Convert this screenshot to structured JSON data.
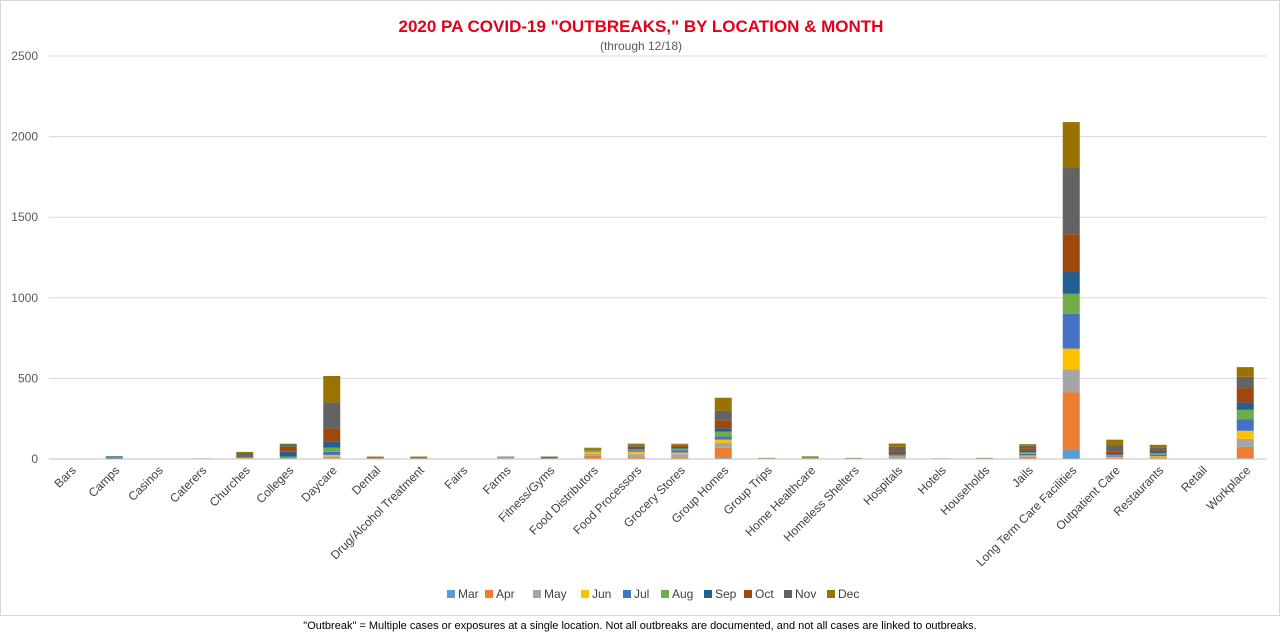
{
  "footnote": "\"Outbreak\" = Multiple cases or exposures at a single location. Not all outbreaks are documented, and not all cases are linked to outbreaks.",
  "chart_data": {
    "type": "bar",
    "stacked": true,
    "title": "2020 PA COVID-19 \"OUTBREAKS,\" BY LOCATION & MONTH",
    "subtitle": "(through 12/18)",
    "title_color": "#e2001a",
    "xlabel": "",
    "ylabel": "",
    "ylim": [
      0,
      2500
    ],
    "yticks": [
      0,
      500,
      1000,
      1500,
      2000,
      2500
    ],
    "grid": true,
    "legend_position": "bottom",
    "categories": [
      "Bars",
      "Camps",
      "Casinos",
      "Caterers",
      "Churches",
      "Colleges",
      "Daycare",
      "Dental",
      "Drug/Alcohol Treatment",
      "Fairs",
      "Farms",
      "Fitness/Gyms",
      "Food Distributors",
      "Food Processors",
      "Grocery Stores",
      "Group Homes",
      "Group Trips",
      "Home Healthcare",
      "Homeless Shelters",
      "Hospitals",
      "Hotels",
      "Households",
      "Jails",
      "Long Term Care Facilities",
      "Outpatient Care",
      "Restaurants",
      "Retail",
      "Workplace"
    ],
    "series": [
      {
        "name": "Mar",
        "color": "#5b9bd5",
        "values": [
          0,
          0,
          0,
          0,
          0,
          0,
          5,
          0,
          0,
          0,
          0,
          0,
          0,
          0,
          0,
          10,
          0,
          0,
          0,
          5,
          0,
          0,
          2,
          60,
          3,
          2,
          0,
          5
        ]
      },
      {
        "name": "Apr",
        "color": "#ed7d31",
        "values": [
          0,
          0,
          0,
          0,
          2,
          0,
          5,
          0,
          0,
          0,
          0,
          0,
          20,
          10,
          10,
          60,
          0,
          2,
          0,
          5,
          0,
          0,
          10,
          355,
          5,
          5,
          0,
          70
        ]
      },
      {
        "name": "May",
        "color": "#a5a5a5",
        "values": [
          0,
          0,
          0,
          0,
          2,
          0,
          5,
          0,
          0,
          0,
          2,
          0,
          15,
          20,
          20,
          30,
          0,
          0,
          0,
          3,
          0,
          0,
          5,
          140,
          3,
          5,
          0,
          50
        ]
      },
      {
        "name": "Jun",
        "color": "#ffc000",
        "values": [
          0,
          0,
          0,
          0,
          2,
          0,
          10,
          0,
          0,
          0,
          3,
          0,
          10,
          15,
          10,
          20,
          0,
          0,
          0,
          3,
          0,
          0,
          5,
          130,
          3,
          5,
          0,
          50
        ]
      },
      {
        "name": "Jul",
        "color": "#4472c4",
        "values": [
          0,
          10,
          0,
          0,
          3,
          5,
          20,
          0,
          0,
          0,
          3,
          2,
          5,
          10,
          15,
          20,
          0,
          2,
          0,
          5,
          0,
          0,
          10,
          215,
          5,
          10,
          0,
          70
        ]
      },
      {
        "name": "Aug",
        "color": "#70ad47",
        "values": [
          0,
          5,
          0,
          0,
          3,
          10,
          25,
          0,
          0,
          0,
          5,
          2,
          3,
          5,
          10,
          30,
          0,
          2,
          0,
          5,
          0,
          0,
          10,
          125,
          5,
          8,
          0,
          60
        ]
      },
      {
        "name": "Sep",
        "color": "#255e91",
        "values": [
          0,
          3,
          0,
          0,
          5,
          30,
          40,
          2,
          2,
          0,
          2,
          2,
          2,
          5,
          10,
          20,
          0,
          2,
          0,
          5,
          0,
          0,
          10,
          135,
          5,
          8,
          0,
          45
        ]
      },
      {
        "name": "Oct",
        "color": "#9e480e",
        "values": [
          0,
          0,
          0,
          0,
          7,
          30,
          80,
          3,
          3,
          0,
          0,
          3,
          3,
          10,
          8,
          50,
          2,
          3,
          2,
          15,
          2,
          2,
          15,
          235,
          15,
          10,
          0,
          90
        ]
      },
      {
        "name": "Nov",
        "color": "#636363",
        "values": [
          2,
          0,
          0,
          2,
          10,
          15,
          160,
          5,
          5,
          2,
          0,
          5,
          5,
          10,
          5,
          60,
          3,
          3,
          3,
          30,
          2,
          3,
          15,
          410,
          40,
          20,
          0,
          70
        ]
      },
      {
        "name": "Dec",
        "color": "#997300",
        "values": [
          0,
          0,
          0,
          2,
          10,
          5,
          165,
          5,
          5,
          0,
          0,
          2,
          7,
          10,
          7,
          80,
          2,
          3,
          2,
          20,
          0,
          2,
          10,
          285,
          36,
          15,
          0,
          60
        ]
      }
    ]
  }
}
